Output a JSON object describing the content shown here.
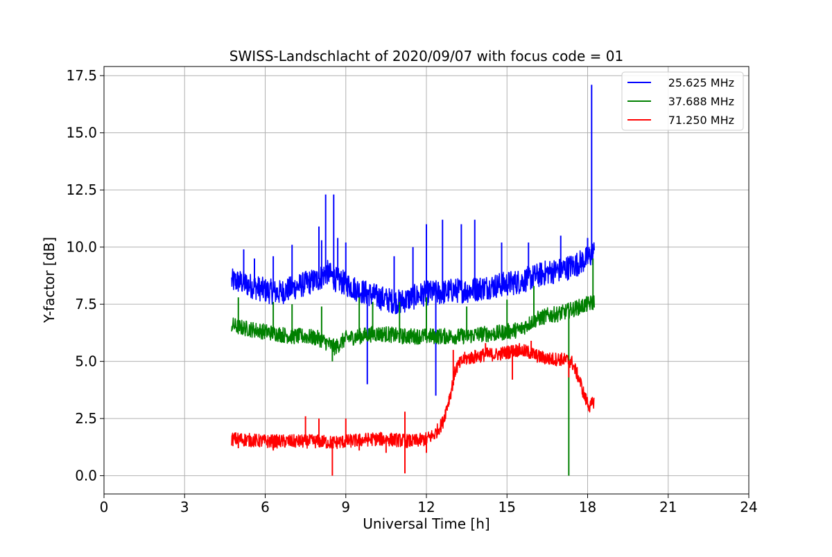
{
  "chart_data": {
    "type": "line",
    "title": "SWISS-Landschlacht of 2020/09/07 with focus code = 01",
    "xlabel": "Universal Time [h]",
    "ylabel": "Y-factor [dB]",
    "xlim": [
      0,
      24
    ],
    "ylim": [
      -0.8,
      17.9
    ],
    "xticks": [
      0,
      3,
      6,
      9,
      12,
      15,
      18,
      21,
      24
    ],
    "xtick_labels": [
      "0",
      "3",
      "6",
      "9",
      "12",
      "15",
      "18",
      "21",
      "24"
    ],
    "yticks": [
      0,
      2.5,
      5,
      7.5,
      10,
      12.5,
      15,
      17.5
    ],
    "ytick_labels": [
      "0.0",
      "2.5",
      "5.0",
      "7.5",
      "10.0",
      "12.5",
      "15.0",
      "17.5"
    ],
    "grid": true,
    "legend_position": "top-right",
    "series": [
      {
        "name": "25.625 MHz",
        "color": "#0000ff",
        "x": [
          4.75,
          5.0,
          5.5,
          6.0,
          6.5,
          7.0,
          7.5,
          8.0,
          8.3,
          8.6,
          9.0,
          9.5,
          10.0,
          10.5,
          11.0,
          11.5,
          12.0,
          12.5,
          13.0,
          13.5,
          14.0,
          14.5,
          15.0,
          15.5,
          16.0,
          16.5,
          17.0,
          17.5,
          18.0,
          18.25
        ],
        "y": [
          8.5,
          8.5,
          8.3,
          8.1,
          8.0,
          8.2,
          8.4,
          8.6,
          8.9,
          8.6,
          8.4,
          8.1,
          7.9,
          7.7,
          7.6,
          7.8,
          8.0,
          8.0,
          8.1,
          8.1,
          8.2,
          8.3,
          8.4,
          8.5,
          8.7,
          8.9,
          9.0,
          9.2,
          9.5,
          9.8
        ],
        "spikes": [
          {
            "x": 5.2,
            "y": 9.9
          },
          {
            "x": 5.6,
            "y": 9.5
          },
          {
            "x": 6.3,
            "y": 9.6
          },
          {
            "x": 7.0,
            "y": 10.1
          },
          {
            "x": 8.0,
            "y": 10.9
          },
          {
            "x": 8.1,
            "y": 10.3
          },
          {
            "x": 8.25,
            "y": 12.3
          },
          {
            "x": 8.55,
            "y": 12.3
          },
          {
            "x": 8.7,
            "y": 10.4
          },
          {
            "x": 9.0,
            "y": 10.2
          },
          {
            "x": 9.8,
            "y": 4.0
          },
          {
            "x": 10.8,
            "y": 9.6
          },
          {
            "x": 11.5,
            "y": 10.0
          },
          {
            "x": 12.0,
            "y": 11.0
          },
          {
            "x": 12.35,
            "y": 3.5
          },
          {
            "x": 12.6,
            "y": 11.2
          },
          {
            "x": 13.3,
            "y": 11.0
          },
          {
            "x": 13.8,
            "y": 11.2
          },
          {
            "x": 14.8,
            "y": 10.2
          },
          {
            "x": 15.8,
            "y": 10.2
          },
          {
            "x": 17.0,
            "y": 10.5
          },
          {
            "x": 18.0,
            "y": 10.4
          },
          {
            "x": 18.15,
            "y": 17.1
          }
        ]
      },
      {
        "name": "37.688 MHz",
        "color": "#008000",
        "x": [
          4.75,
          5.0,
          5.5,
          6.0,
          6.5,
          7.0,
          7.5,
          8.0,
          8.3,
          8.6,
          9.0,
          9.5,
          10.0,
          10.5,
          11.0,
          11.5,
          12.0,
          12.5,
          13.0,
          13.5,
          14.0,
          14.5,
          15.0,
          15.5,
          16.0,
          16.5,
          17.0,
          17.5,
          18.0,
          18.25
        ],
        "y": [
          6.6,
          6.5,
          6.4,
          6.3,
          6.2,
          6.1,
          6.1,
          6.0,
          5.8,
          5.6,
          6.0,
          6.1,
          6.2,
          6.2,
          6.1,
          6.1,
          6.1,
          6.1,
          6.1,
          6.1,
          6.2,
          6.2,
          6.3,
          6.4,
          6.8,
          7.0,
          7.1,
          7.3,
          7.5,
          7.6
        ],
        "spikes": [
          {
            "x": 5.0,
            "y": 7.8
          },
          {
            "x": 6.3,
            "y": 7.6
          },
          {
            "x": 7.0,
            "y": 7.5
          },
          {
            "x": 8.1,
            "y": 7.4
          },
          {
            "x": 8.5,
            "y": 5.0
          },
          {
            "x": 9.5,
            "y": 7.8
          },
          {
            "x": 10.0,
            "y": 7.6
          },
          {
            "x": 11.0,
            "y": 7.6
          },
          {
            "x": 12.0,
            "y": 7.8
          },
          {
            "x": 13.5,
            "y": 7.4
          },
          {
            "x": 15.0,
            "y": 7.7
          },
          {
            "x": 16.0,
            "y": 8.3
          },
          {
            "x": 17.3,
            "y": 0.0
          },
          {
            "x": 18.2,
            "y": 9.5
          }
        ]
      },
      {
        "name": "71.250 MHz",
        "color": "#ff0000",
        "x": [
          4.75,
          5.0,
          5.5,
          6.0,
          6.5,
          7.0,
          7.5,
          8.0,
          8.5,
          9.0,
          9.5,
          10.0,
          10.5,
          11.0,
          11.5,
          12.0,
          12.3,
          12.6,
          12.9,
          13.1,
          13.4,
          13.8,
          14.2,
          14.6,
          15.0,
          15.4,
          15.8,
          16.2,
          16.6,
          17.0,
          17.4,
          17.7,
          17.9,
          18.1,
          18.25
        ],
        "y": [
          1.6,
          1.6,
          1.55,
          1.5,
          1.5,
          1.5,
          1.5,
          1.5,
          1.45,
          1.5,
          1.55,
          1.6,
          1.6,
          1.55,
          1.5,
          1.6,
          1.8,
          2.3,
          3.6,
          4.7,
          5.1,
          5.2,
          5.3,
          5.3,
          5.4,
          5.5,
          5.4,
          5.2,
          5.1,
          5.1,
          5.0,
          4.2,
          3.4,
          3.0,
          3.3
        ],
        "spikes": [
          {
            "x": 5.0,
            "y": 1.2
          },
          {
            "x": 6.3,
            "y": 1.1
          },
          {
            "x": 7.5,
            "y": 2.6
          },
          {
            "x": 8.0,
            "y": 2.5
          },
          {
            "x": 8.5,
            "y": 0.0
          },
          {
            "x": 9.0,
            "y": 2.5
          },
          {
            "x": 9.5,
            "y": 1.1
          },
          {
            "x": 10.5,
            "y": 1.0
          },
          {
            "x": 11.2,
            "y": 0.1
          },
          {
            "x": 11.2,
            "y": 2.8
          },
          {
            "x": 12.0,
            "y": 1.0
          },
          {
            "x": 13.0,
            "y": 5.5
          },
          {
            "x": 14.2,
            "y": 5.8
          },
          {
            "x": 15.2,
            "y": 4.2
          },
          {
            "x": 15.9,
            "y": 5.9
          },
          {
            "x": 17.3,
            "y": 4.3
          }
        ]
      }
    ]
  }
}
